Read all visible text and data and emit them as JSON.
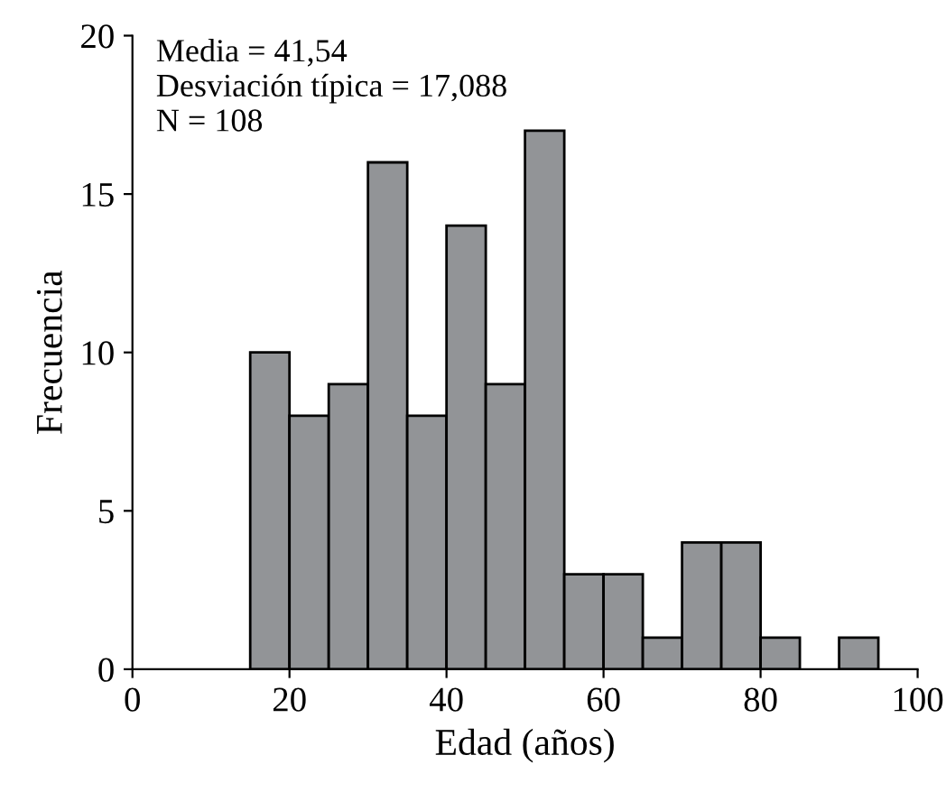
{
  "chart_data": {
    "type": "histogram",
    "xlabel": "Edad (años)",
    "ylabel": "Frecuencia",
    "annotations": [
      "Media = 41,54",
      "Desviación típica = 17,088",
      "N = 108"
    ],
    "bins": [
      15,
      20,
      25,
      30,
      35,
      40,
      45,
      50,
      55,
      60,
      65,
      70,
      75,
      80,
      85,
      90,
      95
    ],
    "values": [
      10,
      8,
      9,
      16,
      8,
      14,
      9,
      17,
      3,
      3,
      1,
      4,
      4,
      1,
      0,
      1
    ],
    "color": "#929497",
    "xlim": [
      0,
      100
    ],
    "xticks": [
      0,
      20,
      40,
      60,
      80,
      100
    ],
    "ylim": [
      0,
      20
    ],
    "yticks": [
      0,
      5,
      10,
      15,
      20
    ],
    "grid": false
  }
}
